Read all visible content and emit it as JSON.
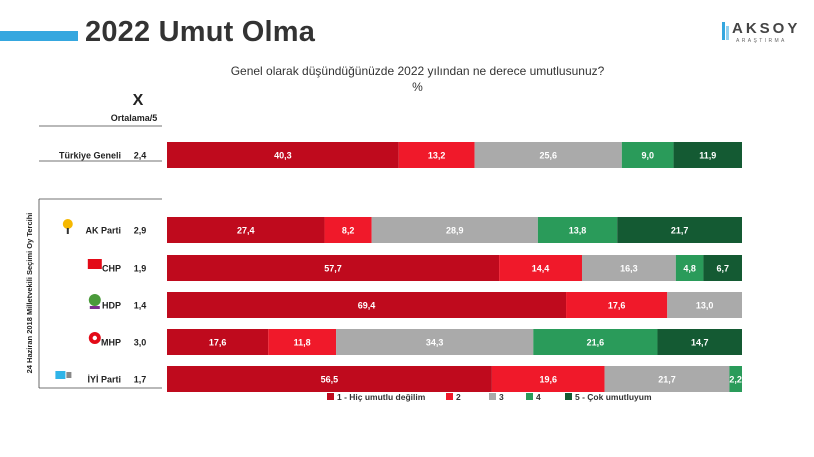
{
  "header": {
    "title": "2022 Umut Olma",
    "logo_text": "AKSOY",
    "logo_subtext": "ARAŞTIRMA"
  },
  "question": {
    "text": "Genel olarak düşündüğünüzde 2022 yılından ne derece umutlusunuz?",
    "unit": "%"
  },
  "colors": {
    "accent": "#35a7df",
    "c1": "#bf0a1d",
    "c2": "#f0192a",
    "c3": "#aaaaaa",
    "c4": "#2a9b5a",
    "c5": "#145a33"
  },
  "chart_data": {
    "type": "bar",
    "stacked": true,
    "orientation": "horizontal",
    "mean_header_symbol": "X",
    "mean_header_label": "Ortalama/5",
    "group_label": "24 Haziran 2018 Milletvekili Seçimi Oy Tercihi",
    "legend_position": "bottom",
    "xlim": [
      0,
      100
    ],
    "categories": [
      {
        "label": "Türkiye Geneli",
        "mean": "2,4",
        "icon": "none",
        "values": [
          40.3,
          13.2,
          25.6,
          9.0,
          11.9
        ],
        "value_labels": [
          "40,3",
          "13,2",
          "25,6",
          "9,0",
          "11,9"
        ]
      },
      {
        "label": "AK Parti",
        "mean": "2,9",
        "icon": "ak-parti-logo-icon",
        "values": [
          27.4,
          8.2,
          28.9,
          13.8,
          21.7
        ],
        "value_labels": [
          "27,4",
          "8,2",
          "28,9",
          "13,8",
          "21,7"
        ]
      },
      {
        "label": "CHP",
        "mean": "1,9",
        "icon": "chp-logo-icon",
        "values": [
          57.7,
          14.4,
          16.3,
          4.8,
          6.7
        ],
        "value_labels": [
          "57,7",
          "14,4",
          "16,3",
          "4,8",
          "6,7"
        ]
      },
      {
        "label": "HDP",
        "mean": "1,4",
        "icon": "hdp-logo-icon",
        "values": [
          69.4,
          17.6,
          13.0,
          0,
          0
        ],
        "value_labels": [
          "69,4",
          "17,6",
          "13,0",
          "",
          ""
        ]
      },
      {
        "label": "MHP",
        "mean": "3,0",
        "icon": "mhp-logo-icon",
        "values": [
          17.6,
          11.8,
          34.3,
          21.6,
          14.7
        ],
        "value_labels": [
          "17,6",
          "11,8",
          "34,3",
          "21,6",
          "14,7"
        ]
      },
      {
        "label": "İYİ Parti",
        "mean": "1,7",
        "icon": "iyi-parti-logo-icon",
        "values": [
          56.5,
          19.6,
          21.7,
          2.2,
          0
        ],
        "value_labels": [
          "56,5",
          "19,6",
          "21,7",
          "2,2",
          ""
        ]
      }
    ],
    "series": [
      {
        "name": "1 - Hiç umutlu değilim"
      },
      {
        "name": "2"
      },
      {
        "name": "3"
      },
      {
        "name": "4"
      },
      {
        "name": "5 - Çok umutluyum"
      }
    ]
  }
}
